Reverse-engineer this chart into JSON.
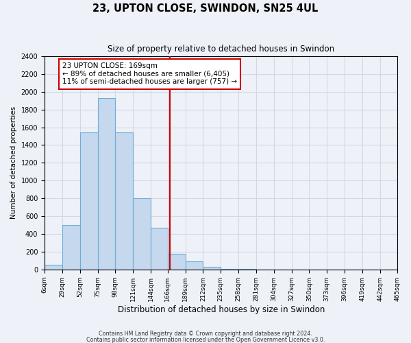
{
  "title": "23, UPTON CLOSE, SWINDON, SN25 4UL",
  "subtitle": "Size of property relative to detached houses in Swindon",
  "xlabel": "Distribution of detached houses by size in Swindon",
  "ylabel": "Number of detached properties",
  "bar_edges": [
    6,
    29,
    52,
    75,
    98,
    121,
    144,
    166,
    189,
    212,
    235,
    258,
    281,
    304,
    327,
    350,
    373,
    396,
    419,
    442,
    465
  ],
  "bar_heights": [
    50,
    500,
    1540,
    1930,
    1540,
    800,
    470,
    180,
    90,
    30,
    5,
    5,
    0,
    0,
    0,
    0,
    0,
    0,
    0,
    0
  ],
  "bar_color": "#c5d8ed",
  "bar_edgecolor": "#6baed6",
  "vline_x": 169,
  "vline_color": "#cc0000",
  "annotation_text": "23 UPTON CLOSE: 169sqm\n← 89% of detached houses are smaller (6,405)\n11% of semi-detached houses are larger (757) →",
  "annotation_box_edgecolor": "#cc0000",
  "annotation_box_facecolor": "#ffffff",
  "ylim": [
    0,
    2400
  ],
  "yticks": [
    0,
    200,
    400,
    600,
    800,
    1000,
    1200,
    1400,
    1600,
    1800,
    2000,
    2200,
    2400
  ],
  "xtick_labels": [
    "6sqm",
    "29sqm",
    "52sqm",
    "75sqm",
    "98sqm",
    "121sqm",
    "144sqm",
    "166sqm",
    "189sqm",
    "212sqm",
    "235sqm",
    "258sqm",
    "281sqm",
    "304sqm",
    "327sqm",
    "350sqm",
    "373sqm",
    "396sqm",
    "419sqm",
    "442sqm",
    "465sqm"
  ],
  "grid_color": "#d0d8e8",
  "bg_color": "#eef2f8",
  "footnote1": "Contains HM Land Registry data © Crown copyright and database right 2024.",
  "footnote2": "Contains public sector information licensed under the Open Government Licence v3.0."
}
